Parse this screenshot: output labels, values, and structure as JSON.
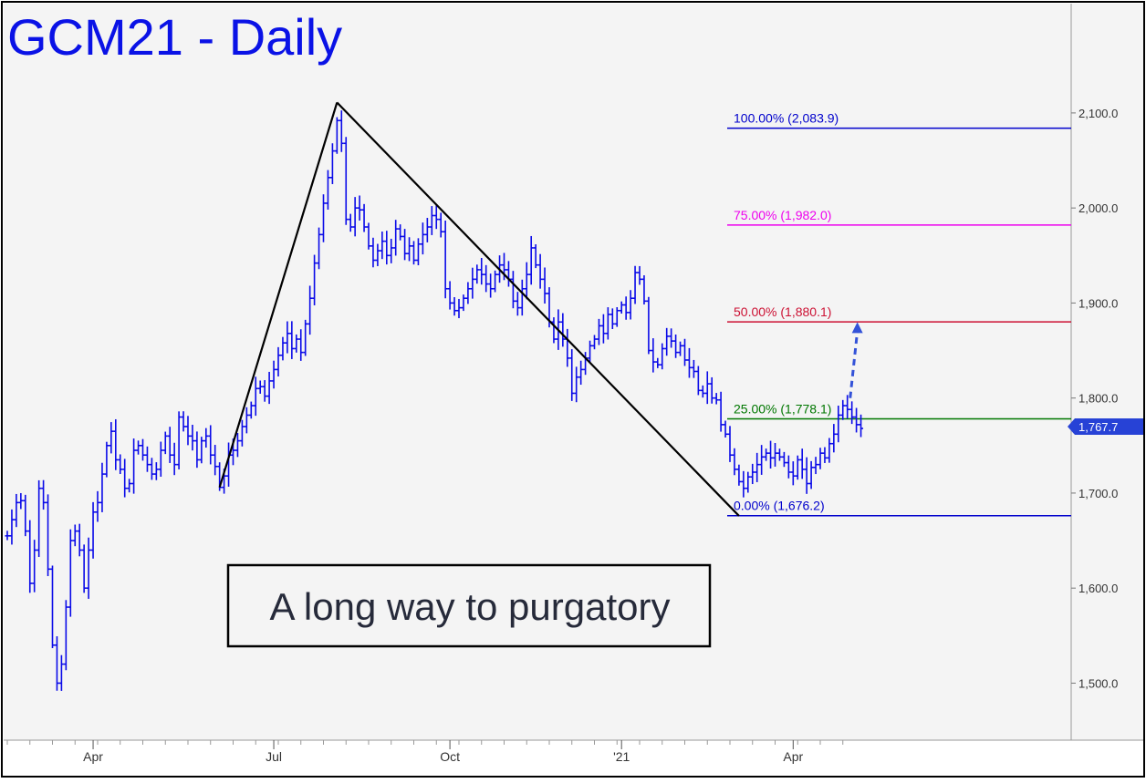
{
  "chart_data": {
    "type": "ohlc",
    "title": "GCM21 - Daily",
    "annotation": "A long way to purgatory",
    "last_price_label": "1,767.7",
    "last_price": 1767.7,
    "ylim": [
      1440,
      2215
    ],
    "y_ticks": [
      {
        "value": 1500,
        "label": "1,500.0"
      },
      {
        "value": 1600,
        "label": "1,600.0"
      },
      {
        "value": 1700,
        "label": "1,700.0"
      },
      {
        "value": 1800,
        "label": "1,800.0"
      },
      {
        "value": 1900,
        "label": "1,900.0"
      },
      {
        "value": 2000,
        "label": "2,000.0"
      },
      {
        "value": 2100,
        "label": "2,100.0"
      }
    ],
    "x_ticks": [
      {
        "bar": 19,
        "label": "Apr"
      },
      {
        "bar": 59,
        "label": "Jul"
      },
      {
        "bar": 98,
        "label": "Oct"
      },
      {
        "bar": 136,
        "label": "'21"
      },
      {
        "bar": 174,
        "label": "Apr"
      }
    ],
    "fib_levels": [
      {
        "pct": "100.00%",
        "value": 2083.9,
        "label": "100.00% (2,083.9)",
        "color": "#0000cc"
      },
      {
        "pct": "75.00%",
        "value": 1982.0,
        "label": "75.00% (1,982.0)",
        "color": "#ee00ee"
      },
      {
        "pct": "50.00%",
        "value": 1880.1,
        "label": "50.00% (1,880.1)",
        "color": "#cc1133"
      },
      {
        "pct": "25.00%",
        "value": 1778.1,
        "label": "25.00% (1,778.1)",
        "color": "#007700"
      },
      {
        "pct": "0.00%",
        "value": 1676.2,
        "label": "0.00% (1,676.2)",
        "color": "#0000cc"
      }
    ],
    "pattern_lines": [
      {
        "from": {
          "bar": 47,
          "value": 1706
        },
        "to": {
          "bar": 73,
          "value": 2111
        }
      },
      {
        "from": {
          "bar": 73,
          "value": 2111
        },
        "to": {
          "bar": 162,
          "value": 1676
        }
      }
    ],
    "target_arrow": {
      "from": {
        "bar": 185,
        "value": 1800
      },
      "to": {
        "bar": 187,
        "value": 1878
      }
    },
    "series": [
      {
        "values": [
          1655,
          1672,
          1690,
          1692,
          1660,
          1605,
          1640,
          1705,
          1690,
          1620,
          1540,
          1500,
          1520,
          1580,
          1650,
          1660,
          1640,
          1600,
          1640,
          1680,
          1690,
          1720,
          1750,
          1765,
          1735,
          1725,
          1705,
          1710,
          1745,
          1750,
          1740,
          1730,
          1720,
          1725,
          1745,
          1760,
          1740,
          1730,
          1780,
          1770,
          1760,
          1755,
          1735,
          1755,
          1760,
          1740,
          1728,
          1706,
          1718,
          1740,
          1745,
          1755,
          1770,
          1782,
          1792,
          1810,
          1812,
          1802,
          1818,
          1830,
          1845,
          1858,
          1868,
          1852,
          1862,
          1848,
          1878,
          1905,
          1942,
          1972,
          2005,
          2032,
          2060,
          2092,
          2068,
          1988,
          1980,
          2000,
          1998,
          1980,
          1960,
          1945,
          1955,
          1965,
          1950,
          1958,
          1978,
          1970,
          1952,
          1960,
          1945,
          1962,
          1972,
          1980,
          1992,
          1988,
          1975,
          1915,
          1900,
          1892,
          1895,
          1905,
          1915,
          1925,
          1935,
          1930,
          1920,
          1915,
          1930,
          1940,
          1935,
          1925,
          1902,
          1895,
          1915,
          1930,
          1958,
          1940,
          1925,
          1910,
          1880,
          1862,
          1880,
          1862,
          1842,
          1805,
          1822,
          1830,
          1842,
          1855,
          1862,
          1876,
          1868,
          1888,
          1878,
          1892,
          1898,
          1890,
          1905,
          1932,
          1925,
          1902,
          1850,
          1838,
          1835,
          1852,
          1865,
          1860,
          1848,
          1855,
          1840,
          1832,
          1828,
          1808,
          1805,
          1815,
          1800,
          1798,
          1772,
          1762,
          1740,
          1725,
          1712,
          1705,
          1717,
          1722,
          1730,
          1738,
          1742,
          1737,
          1742,
          1738,
          1732,
          1722,
          1718,
          1735,
          1725,
          1710,
          1727,
          1730,
          1742,
          1737,
          1752,
          1762,
          1782,
          1792,
          1788,
          1780,
          1772,
          1768
        ]
      }
    ]
  }
}
